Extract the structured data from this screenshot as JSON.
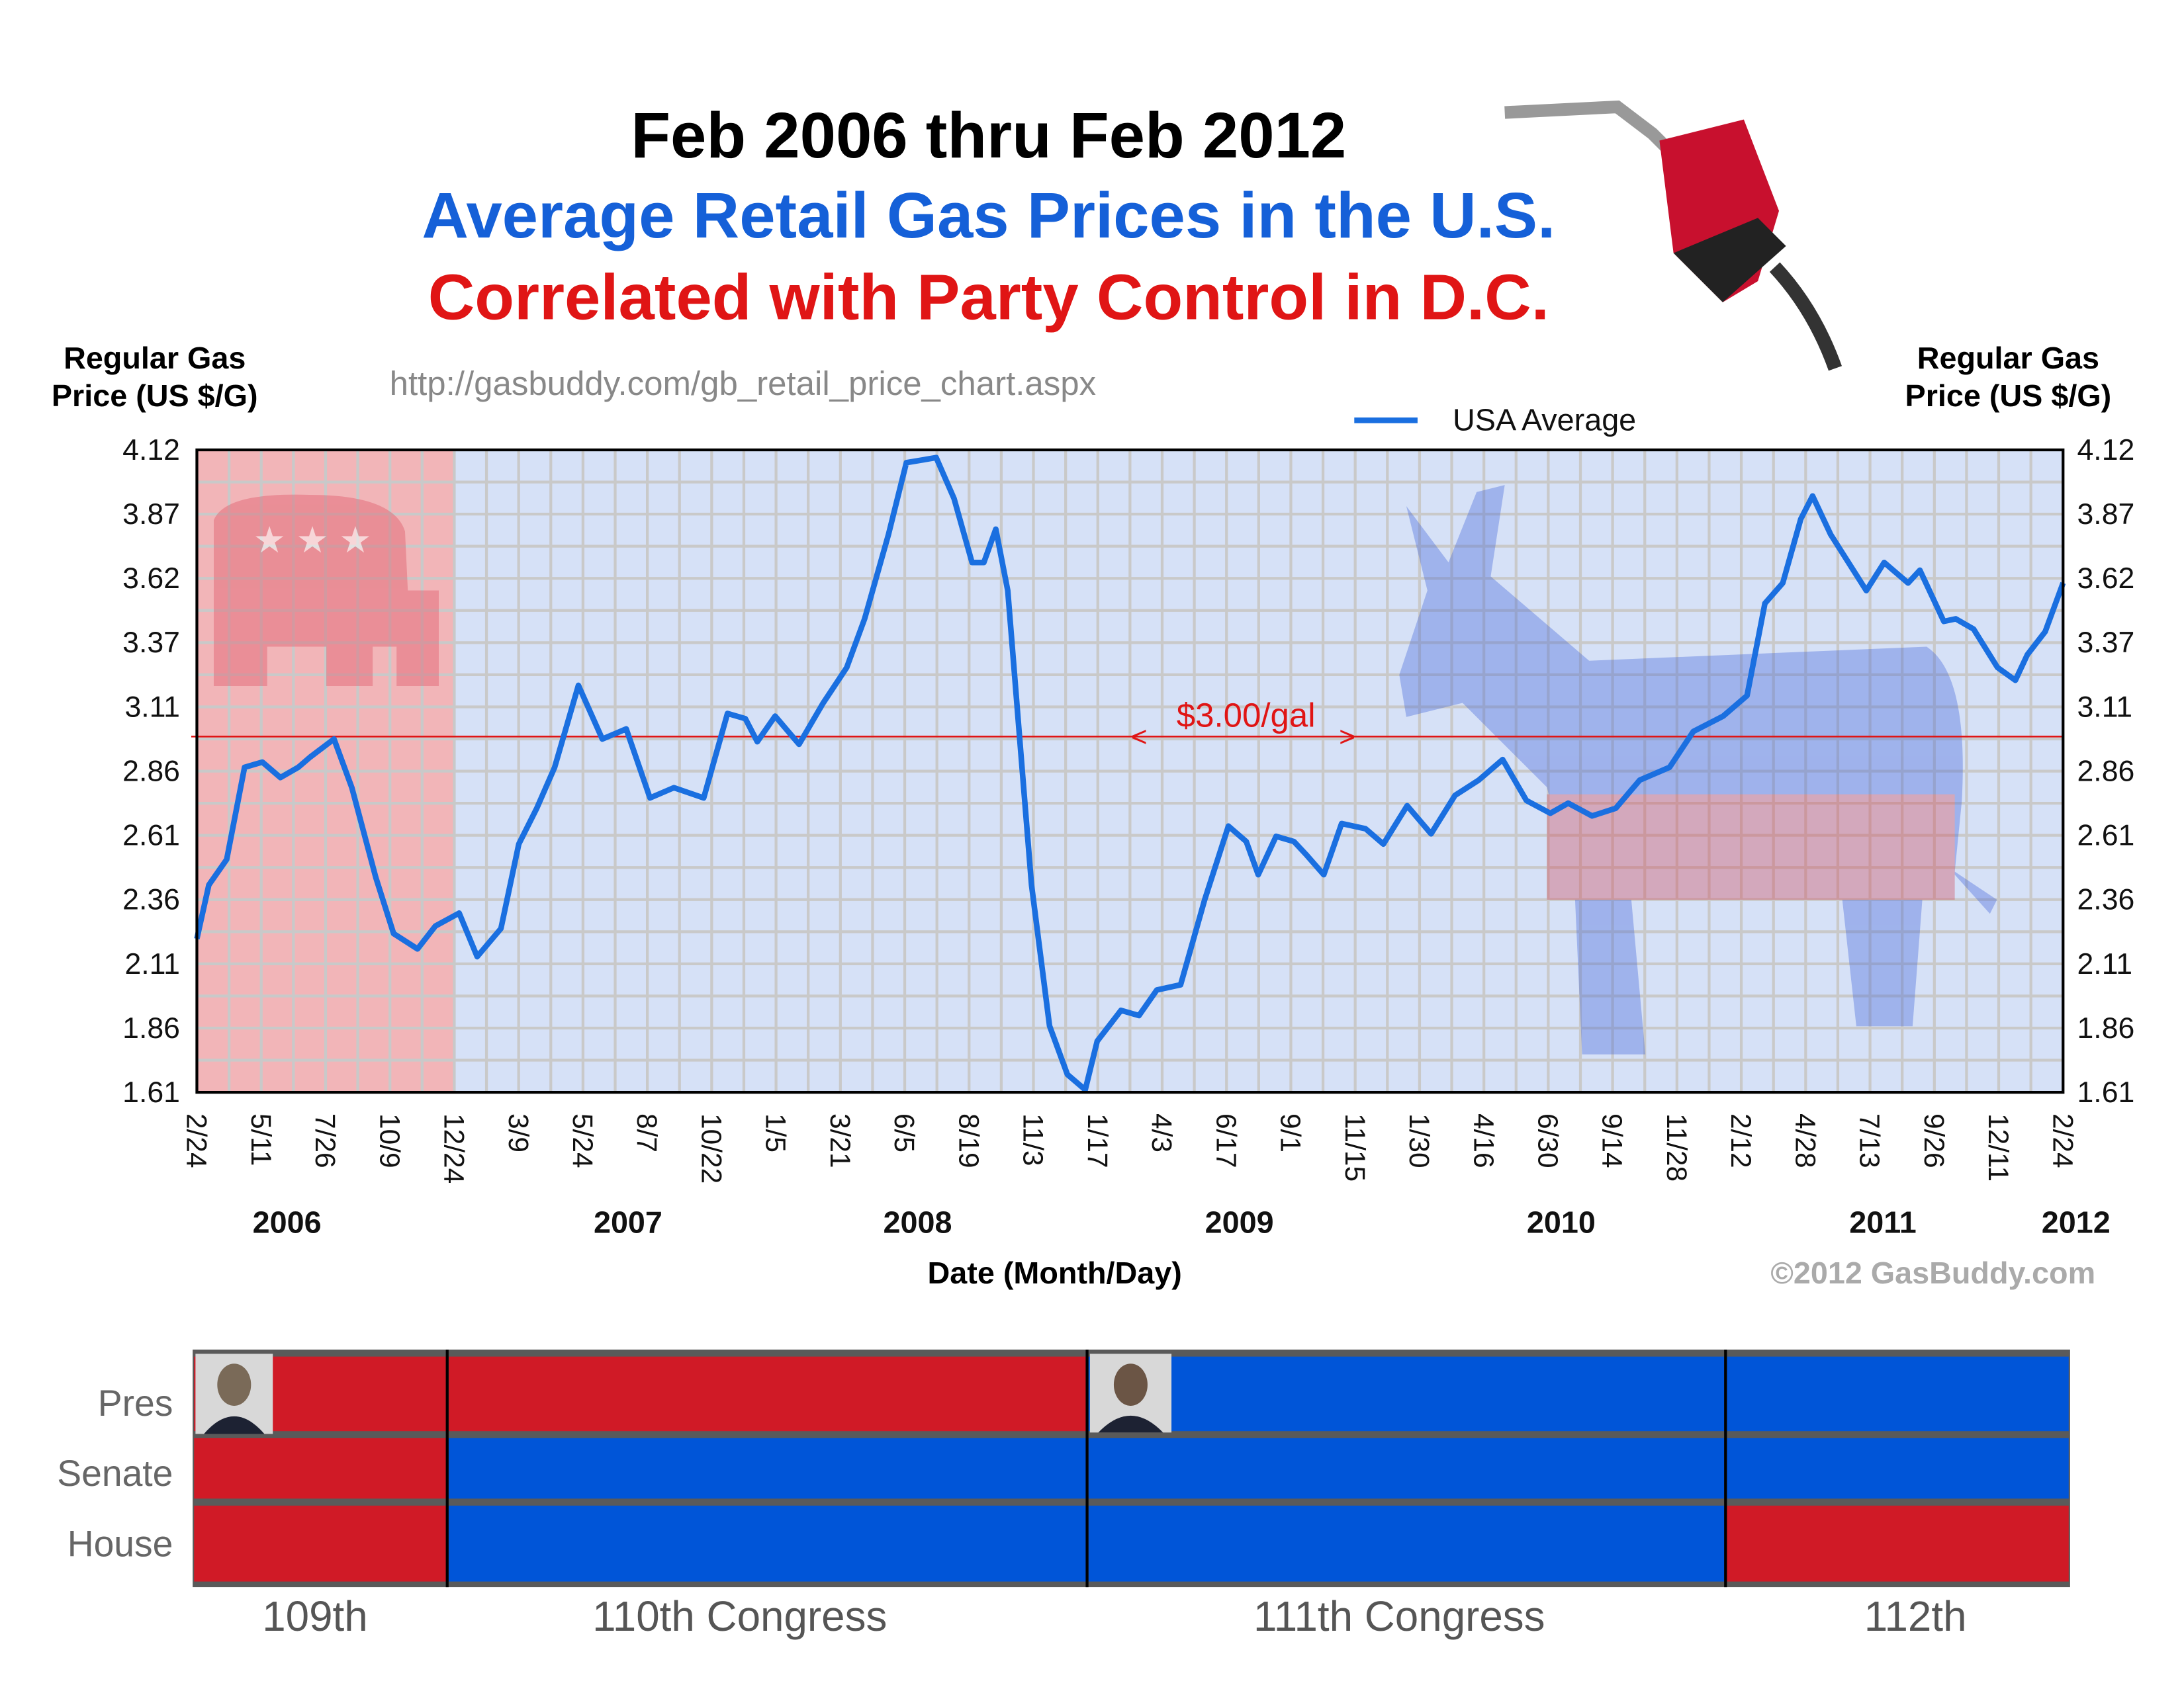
{
  "header": {
    "line1": "Feb 2006 thru Feb 2012",
    "line2": "Average Retail Gas Prices in the U.S.",
    "line3": "Correlated with Party Control in D.C.",
    "source_url": "http://gasbuddy.com/gb_retail_price_chart.aspx",
    "colors": {
      "line1": "#000000",
      "line2": "#1560d8",
      "line3": "#e01515"
    }
  },
  "chart_data": {
    "type": "line",
    "title": "Average Retail Gas Prices in the U.S.",
    "xlabel": "Date (Month/Day)",
    "ylabel_left": "Regular Gas Price (US $/G)",
    "ylabel_right": "Regular Gas Price (US $/G)",
    "ylim": [
      1.61,
      4.12
    ],
    "y_ticks": [
      "4.12",
      "3.87",
      "3.62",
      "3.37",
      "3.11",
      "2.86",
      "2.61",
      "2.36",
      "2.11",
      "1.86",
      "1.61"
    ],
    "x_unit": "weeks since 2006-02-24",
    "xlim": [
      0,
      313
    ],
    "x_ticks": [
      "2/24",
      "5/11",
      "7/26",
      "10/9",
      "12/24",
      "3/9",
      "5/24",
      "8/7",
      "10/22",
      "1/5",
      "3/21",
      "6/5",
      "8/19",
      "11/3",
      "1/17",
      "4/3",
      "6/17",
      "9/1",
      "11/15",
      "1/30",
      "4/16",
      "6/30",
      "9/14",
      "11/28",
      "2/12",
      "4/28",
      "7/13",
      "9/26",
      "12/11",
      "2/24"
    ],
    "years": [
      {
        "label": "2006",
        "tick": 1.4
      },
      {
        "label": "2007",
        "tick": 6.7
      },
      {
        "label": "2008",
        "tick": 11.2
      },
      {
        "label": "2009",
        "tick": 16.2
      },
      {
        "label": "2010",
        "tick": 21.2
      },
      {
        "label": "2011",
        "tick": 26.2
      },
      {
        "label": "2012",
        "tick": 29.2
      }
    ],
    "legend": {
      "label": "USA Average",
      "placement": "top-right"
    },
    "grid": true,
    "reference_line": {
      "value": 3.0,
      "label": "$3.00/gal",
      "color": "#e01515"
    },
    "copyright": "©2012 GasBuddy.com",
    "series": [
      {
        "name": "USA Average",
        "color": "#1a6fe0",
        "x": [
          0,
          2,
          5,
          8,
          11,
          14,
          17,
          19,
          23,
          26,
          30,
          33,
          37,
          40,
          44,
          47,
          51,
          54,
          57,
          60,
          64,
          68,
          72,
          76,
          80,
          85,
          89,
          92,
          94,
          97,
          101,
          105,
          109,
          112,
          116,
          119,
          124,
          127,
          130,
          132,
          134,
          136,
          138,
          140,
          143,
          146,
          149,
          151,
          155,
          158,
          161,
          165,
          169,
          173,
          176,
          178,
          181,
          184,
          186,
          189,
          192,
          196,
          199,
          203,
          207,
          211,
          215,
          219,
          223,
          227,
          230,
          234,
          238,
          242,
          247,
          251,
          256,
          260,
          263,
          266,
          269,
          271,
          274,
          277,
          280,
          283,
          287,
          289,
          293,
          295,
          298,
          302,
          305,
          307,
          310,
          313
        ],
        "y": [
          2.21,
          2.42,
          2.52,
          2.88,
          2.9,
          2.84,
          2.88,
          2.92,
          2.99,
          2.8,
          2.45,
          2.23,
          2.17,
          2.26,
          2.31,
          2.14,
          2.25,
          2.58,
          2.72,
          2.88,
          3.2,
          2.99,
          3.03,
          2.76,
          2.8,
          2.76,
          3.09,
          3.07,
          2.98,
          3.08,
          2.97,
          3.13,
          3.27,
          3.46,
          3.79,
          4.07,
          4.09,
          3.93,
          3.68,
          3.68,
          3.81,
          3.57,
          2.99,
          2.42,
          1.87,
          1.68,
          1.62,
          1.81,
          1.93,
          1.91,
          2.01,
          2.03,
          2.36,
          2.65,
          2.59,
          2.46,
          2.61,
          2.59,
          2.54,
          2.46,
          2.66,
          2.64,
          2.58,
          2.73,
          2.62,
          2.77,
          2.83,
          2.91,
          2.75,
          2.7,
          2.74,
          2.69,
          2.72,
          2.83,
          2.88,
          3.02,
          3.08,
          3.16,
          3.52,
          3.6,
          3.85,
          3.94,
          3.79,
          3.68,
          3.57,
          3.68,
          3.6,
          3.65,
          3.45,
          3.46,
          3.42,
          3.27,
          3.22,
          3.32,
          3.41,
          3.6
        ]
      }
    ],
    "republican_shade_until_tick": 4
  },
  "control": {
    "row_labels": [
      "Pres",
      "Senate",
      "House"
    ],
    "congress_labels": [
      "109th",
      "110th Congress",
      "111th Congress",
      "112th"
    ],
    "colors": {
      "R": "#d01a26",
      "D": "#0055d8"
    },
    "rows": {
      "Pres": [
        "R",
        "R",
        "D",
        "D"
      ],
      "Senate": [
        "R",
        "D",
        "D",
        "D"
      ],
      "House": [
        "R",
        "D",
        "D",
        "R"
      ]
    },
    "portraits": [
      "Bush portrait",
      "Obama portrait"
    ]
  }
}
